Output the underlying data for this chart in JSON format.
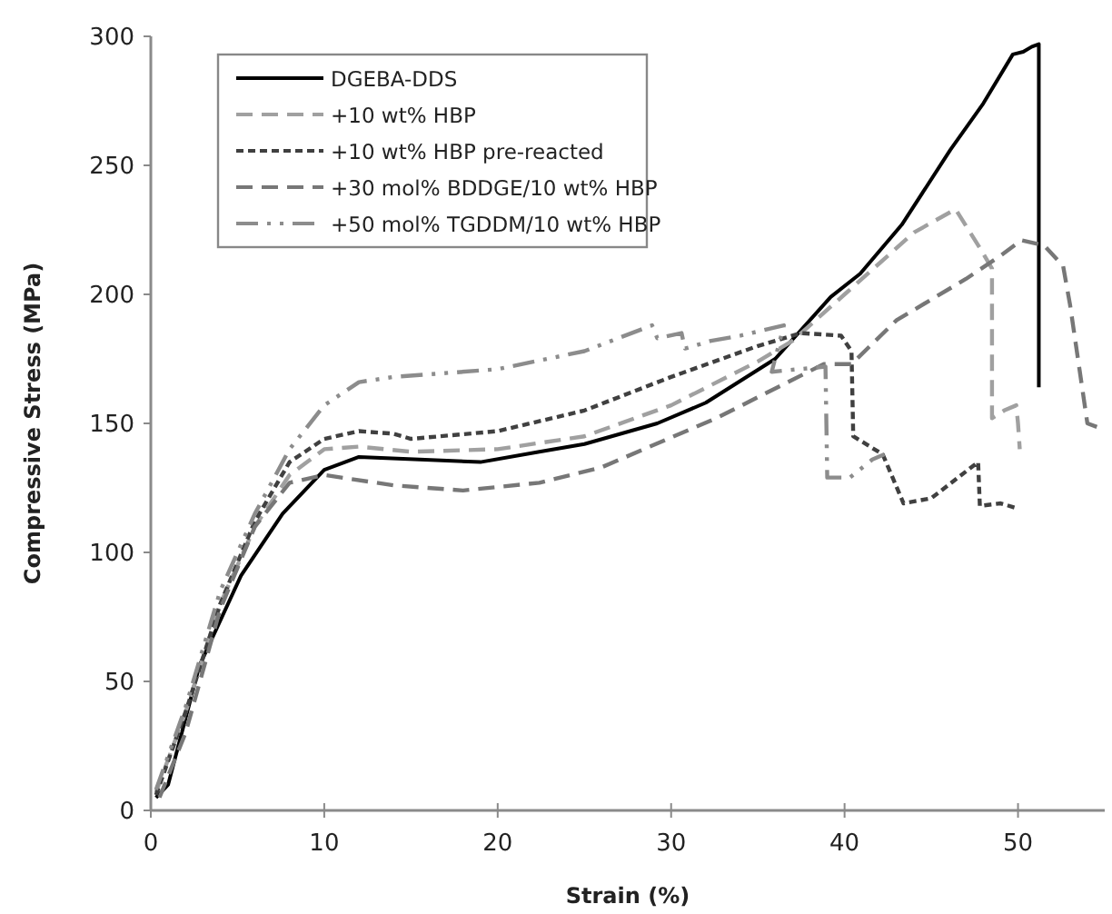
{
  "chart_data": {
    "type": "line",
    "xlabel": "Strain (%)",
    "ylabel": "Compressive Stress  (MPa)",
    "xlim": [
      0,
      55
    ],
    "ylim": [
      0,
      300
    ],
    "xticks": [
      0,
      10,
      20,
      30,
      40,
      50
    ],
    "yticks": [
      0,
      50,
      100,
      150,
      200,
      250,
      300
    ],
    "grid": false,
    "legend": "top left",
    "series": [
      {
        "name": "DGEBA-DDS",
        "color": "#000000",
        "line_style": "solid",
        "x": [
          0.3,
          1,
          2.8,
          5.2,
          7.6,
          10,
          12,
          15.5,
          19,
          22.4,
          25,
          29.2,
          32,
          36,
          39.2,
          40.9,
          43.3,
          46.1,
          48,
          49.7,
          50.3,
          50.8,
          51.2,
          51.2
        ],
        "values": [
          5,
          10,
          56,
          91,
          115,
          132,
          137,
          136,
          135,
          139,
          142,
          150,
          158,
          175,
          199,
          208,
          227,
          256,
          274,
          293,
          294,
          296,
          297,
          164
        ]
      },
      {
        "name": "+10 wt% HBP",
        "color": "#a0a0a0",
        "line_style": "dashed",
        "x": [
          0.3,
          2,
          4,
          6,
          8,
          10,
          12,
          15,
          20,
          25,
          30,
          35,
          37,
          40,
          44,
          46.4,
          47.8,
          48.5,
          48.5,
          49.2,
          49.9,
          50,
          50.1
        ],
        "values": [
          7,
          38,
          80,
          110,
          130,
          140,
          141,
          139,
          140,
          145,
          157,
          174,
          182,
          200,
          224,
          233,
          218,
          210,
          152,
          155,
          157,
          150,
          140
        ]
      },
      {
        "name": "+10 wt% HBP pre-reacted",
        "color": "#404040",
        "line_style": "dotted",
        "x": [
          0.3,
          2,
          4,
          6,
          8,
          10,
          12,
          14,
          15,
          20,
          25,
          30,
          35,
          37.5,
          39.8,
          40.4,
          40.5,
          42.2,
          43.4,
          45,
          47.7,
          47.8,
          49,
          50
        ],
        "values": [
          6,
          38,
          80,
          112,
          135,
          144,
          147,
          146,
          144,
          147,
          155,
          168,
          180,
          185,
          184,
          178,
          145,
          138,
          119,
          121,
          135,
          118,
          119,
          117
        ]
      },
      {
        "name": "+30 mol% BDDGE/10 wt% HBP",
        "color": "#777777",
        "line_style": "dashed",
        "x": [
          0.5,
          2,
          4,
          6,
          8,
          10,
          14,
          18,
          22.4,
          26,
          32.6,
          38.8,
          40.4,
          43,
          47,
          49,
          50.2,
          51.5,
          52.6,
          53,
          54,
          54.8
        ],
        "values": [
          5,
          30,
          78,
          110,
          127,
          130,
          126,
          124,
          127,
          133,
          152,
          173,
          173,
          190,
          206,
          215,
          221,
          219,
          211,
          196,
          150,
          148
        ]
      },
      {
        "name": "+50 mol% TGDDM/10 wt% HBP",
        "color": "#8c8c8c",
        "line_style": "dashdot",
        "x": [
          0.3,
          2,
          4,
          6,
          8,
          10,
          12,
          14,
          20,
          25,
          28.9,
          29.2,
          30.6,
          30.8,
          32.3,
          34,
          36.5,
          35.8,
          38.9,
          39,
          40.3,
          41.6,
          42.3
        ],
        "values": [
          8,
          40,
          85,
          115,
          140,
          157,
          166,
          168,
          171,
          178,
          188,
          183,
          185,
          179,
          182,
          184,
          188,
          170,
          172,
          129,
          129,
          136,
          138
        ]
      }
    ]
  }
}
